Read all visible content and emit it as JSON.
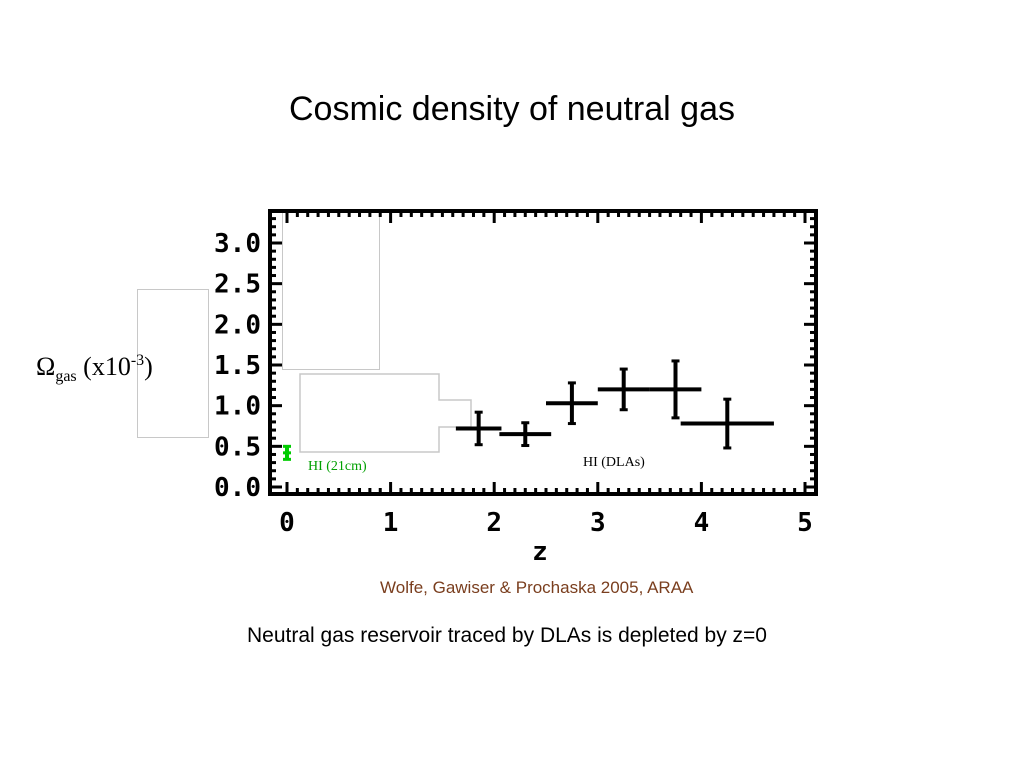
{
  "slide": {
    "title": "Cosmic density of neutral gas",
    "credit": "Wolfe, Gawiser & Prochaska 2005, ARAA",
    "caption": "Neutral gas reservoir traced by DLAs is depleted by z=0"
  },
  "chart_data": {
    "type": "scatter",
    "title": "",
    "xlabel": "z",
    "ylabel": {
      "symbol": "Ω",
      "subscript": "gas",
      "unit_prefix": " (x10",
      "exponent": "-3",
      "unit_suffix": ")"
    },
    "xlim": [
      0,
      5
    ],
    "ylim": [
      0,
      3.3
    ],
    "x_ticks": [
      "0",
      "1",
      "2",
      "3",
      "4",
      "5"
    ],
    "y_ticks": [
      "0.0",
      "0.5",
      "1.0",
      "1.5",
      "2.0",
      "2.5",
      "3.0"
    ],
    "y_tick_values": [
      0,
      0.5,
      1.0,
      1.5,
      2.0,
      2.5,
      3.0
    ],
    "grid": false,
    "series": [
      {
        "name": "HI (21cm)",
        "color": "#00cc00",
        "points": [
          {
            "x": 0.0,
            "y": 0.42,
            "xerr": 0.02,
            "yerr": 0.08
          }
        ]
      },
      {
        "name": "HI (DLAs)",
        "color": "#000000",
        "points": [
          {
            "x": 1.85,
            "y": 0.72,
            "xerr": 0.22,
            "yerr": 0.2
          },
          {
            "x": 2.3,
            "y": 0.65,
            "xerr": 0.25,
            "yerr": 0.14
          },
          {
            "x": 2.75,
            "y": 1.03,
            "xerr": 0.25,
            "yerr": 0.25
          },
          {
            "x": 3.25,
            "y": 1.2,
            "xerr": 0.25,
            "yerr": 0.25
          },
          {
            "x": 3.75,
            "y": 1.2,
            "xerr": 0.25,
            "yerr": 0.35
          },
          {
            "x": 4.25,
            "y": 0.78,
            "xerr": 0.45,
            "yerr": 0.3
          }
        ]
      }
    ]
  }
}
